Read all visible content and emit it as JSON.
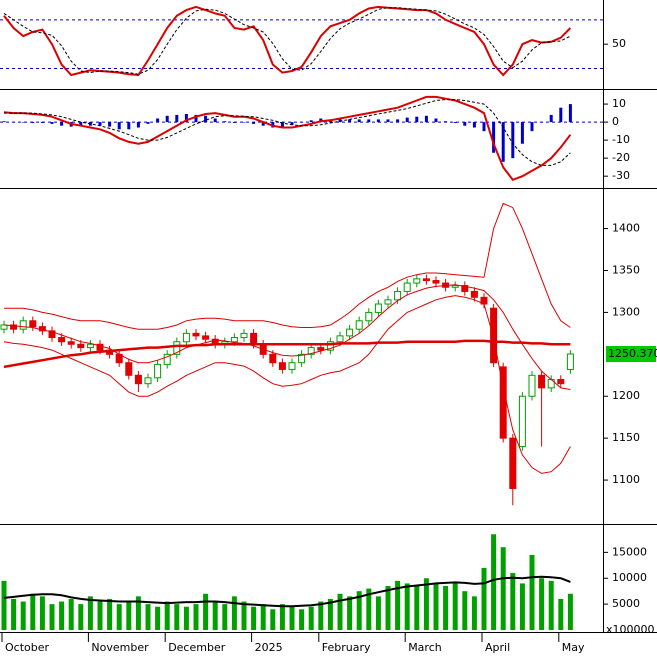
{
  "chart_data": [
    {
      "type": "line",
      "ylim": [
        -4,
        102
      ],
      "yticks": [
        50
      ],
      "reference_lines": [
        20,
        80
      ],
      "reference_color": "#0000cc",
      "series": [
        {
          "color": "#dd0000",
          "width": 2,
          "style": "solid",
          "values": [
            85,
            70,
            60,
            65,
            68,
            50,
            25,
            12,
            15,
            18,
            17,
            16,
            15,
            13,
            12,
            30,
            50,
            70,
            85,
            92,
            96,
            92,
            88,
            85,
            70,
            68,
            72,
            55,
            25,
            15,
            17,
            22,
            40,
            60,
            72,
            76,
            80,
            88,
            94,
            96,
            95,
            94,
            93,
            92,
            92,
            88,
            80,
            75,
            70,
            65,
            50,
            25,
            12,
            25,
            50,
            55,
            52,
            53,
            58,
            70
          ]
        },
        {
          "color": "#000000",
          "width": 1,
          "style": "dashed",
          "values": [
            88,
            80,
            72,
            65,
            64,
            61,
            48,
            29,
            17,
            15,
            17,
            17,
            16,
            15,
            13,
            18,
            31,
            50,
            68,
            82,
            91,
            93,
            92,
            88,
            81,
            74,
            70,
            65,
            51,
            32,
            19,
            18,
            26,
            41,
            57,
            69,
            76,
            81,
            87,
            93,
            95,
            95,
            94,
            93,
            92,
            91,
            87,
            81,
            75,
            70,
            62,
            47,
            29,
            21,
            29,
            43,
            52,
            53,
            54,
            60
          ]
        }
      ]
    },
    {
      "type": "line",
      "ylim": [
        -36,
        16.7
      ],
      "yticks": [
        10,
        0,
        -10,
        -20,
        -30
      ],
      "reference_lines": [
        0
      ],
      "reference_color": "#0000cc",
      "series": [
        {
          "kind": "bar",
          "color": "#0000cc",
          "values": [
            0.5,
            0,
            0,
            -0.5,
            -0.5,
            -1,
            -2,
            -2.5,
            -2,
            -2,
            -2,
            -2.5,
            -4,
            -4,
            -3,
            -1,
            2,
            3.5,
            4,
            4.5,
            4,
            3.5,
            2,
            0.5,
            -0.5,
            -0.2,
            -1,
            -2,
            -3,
            -2.5,
            -1.5,
            0,
            1,
            2,
            1.5,
            1.5,
            1.5,
            1.5,
            1.5,
            1.5,
            1.5,
            1.5,
            2.5,
            3,
            3.5,
            2,
            0.5,
            -0.5,
            -2,
            -3,
            -5,
            -17,
            -22,
            -20,
            -12,
            -5,
            0,
            4,
            8,
            10
          ]
        },
        {
          "color": "#dd0000",
          "width": 2,
          "style": "solid",
          "values": [
            5.5,
            5,
            5,
            4.5,
            4,
            3,
            1,
            -1,
            -2,
            -3,
            -4,
            -6,
            -9,
            -11,
            -12,
            -11,
            -8,
            -5,
            -2,
            1,
            3,
            4.5,
            5,
            4,
            3,
            3,
            2,
            0,
            -2,
            -3,
            -3,
            -2,
            -1,
            0.5,
            1,
            2,
            3,
            4,
            5,
            6,
            7,
            8,
            10,
            12,
            14,
            14,
            13,
            12,
            10,
            8,
            5,
            -12,
            -25,
            -32,
            -30,
            -27,
            -24,
            -20,
            -14,
            -7
          ]
        },
        {
          "color": "#000000",
          "width": 1,
          "style": "dashed",
          "values": [
            5,
            5,
            5,
            5,
            4.5,
            4,
            3,
            1.5,
            0,
            -1,
            -2,
            -3.5,
            -5,
            -7,
            -9,
            -10,
            -10,
            -8.5,
            -6,
            -3.5,
            -1,
            1,
            3,
            3.5,
            3.5,
            3.2,
            3,
            2,
            1,
            -0.5,
            -1.5,
            -2,
            -2,
            -1.5,
            -0.5,
            0.5,
            1.5,
            2.5,
            3.5,
            4.5,
            5.5,
            6.5,
            7.5,
            9,
            10.5,
            12,
            12.5,
            12.5,
            12,
            11,
            10,
            5,
            -3,
            -12,
            -18,
            -22,
            -24,
            -24,
            -22,
            -17
          ]
        }
      ]
    },
    {
      "type": "candlestick",
      "ylim": [
        1050,
        1446
      ],
      "yticks": [
        1100,
        1150,
        1200,
        1300,
        1350,
        1400
      ],
      "up_color": "#00a000",
      "down_color": "#e00000",
      "last_label": "1250.370",
      "last_label_color": "#00c800",
      "open": [
        1280,
        1285,
        1280,
        1290,
        1283,
        1278,
        1270,
        1265,
        1262,
        1258,
        1262,
        1255,
        1250,
        1240,
        1225,
        1215,
        1222,
        1238,
        1250,
        1265,
        1275,
        1272,
        1268,
        1262,
        1265,
        1270,
        1275,
        1262,
        1250,
        1240,
        1232,
        1240,
        1250,
        1258,
        1255,
        1265,
        1272,
        1280,
        1290,
        1300,
        1310,
        1315,
        1325,
        1335,
        1340,
        1338,
        1335,
        1330,
        1332,
        1325,
        1318,
        1305,
        1235,
        1150,
        1140,
        1200,
        1225,
        1210,
        1220,
        1232
      ],
      "high": [
        1290,
        1290,
        1295,
        1295,
        1288,
        1283,
        1275,
        1270,
        1267,
        1267,
        1267,
        1260,
        1255,
        1245,
        1230,
        1227,
        1243,
        1255,
        1270,
        1280,
        1280,
        1277,
        1273,
        1270,
        1275,
        1280,
        1280,
        1267,
        1255,
        1245,
        1245,
        1255,
        1263,
        1263,
        1270,
        1277,
        1285,
        1295,
        1305,
        1315,
        1320,
        1330,
        1340,
        1345,
        1345,
        1343,
        1340,
        1337,
        1337,
        1330,
        1323,
        1310,
        1240,
        1155,
        1205,
        1230,
        1230,
        1225,
        1225,
        1255
      ],
      "low": [
        1275,
        1275,
        1275,
        1278,
        1273,
        1265,
        1260,
        1257,
        1253,
        1253,
        1250,
        1245,
        1235,
        1220,
        1205,
        1210,
        1217,
        1233,
        1245,
        1260,
        1267,
        1263,
        1257,
        1257,
        1260,
        1265,
        1257,
        1245,
        1235,
        1227,
        1227,
        1235,
        1245,
        1250,
        1250,
        1260,
        1267,
        1275,
        1285,
        1295,
        1305,
        1310,
        1320,
        1330,
        1333,
        1330,
        1325,
        1325,
        1320,
        1313,
        1305,
        1235,
        1145,
        1070,
        1135,
        1195,
        1140,
        1205,
        1210,
        1227
      ],
      "close": [
        1285,
        1280,
        1290,
        1283,
        1278,
        1270,
        1265,
        1262,
        1258,
        1262,
        1255,
        1250,
        1240,
        1225,
        1215,
        1222,
        1238,
        1250,
        1265,
        1275,
        1272,
        1268,
        1262,
        1265,
        1270,
        1275,
        1262,
        1250,
        1240,
        1232,
        1240,
        1250,
        1258,
        1255,
        1265,
        1272,
        1280,
        1290,
        1300,
        1310,
        1315,
        1325,
        1335,
        1340,
        1338,
        1335,
        1330,
        1332,
        1325,
        1318,
        1310,
        1240,
        1150,
        1090,
        1200,
        1225,
        1210,
        1220,
        1215,
        1250.37
      ],
      "series": [
        {
          "color": "#dd0000",
          "width": 1,
          "style": "solid",
          "values": [
            1305,
            1305,
            1305,
            1303,
            1300,
            1298,
            1295,
            1292,
            1290,
            1290,
            1290,
            1288,
            1285,
            1282,
            1280,
            1280,
            1280,
            1282,
            1285,
            1290,
            1292,
            1293,
            1293,
            1292,
            1290,
            1290,
            1290,
            1290,
            1288,
            1285,
            1283,
            1282,
            1282,
            1283,
            1285,
            1292,
            1300,
            1310,
            1318,
            1325,
            1330,
            1337,
            1342,
            1345,
            1347,
            1347,
            1346,
            1345,
            1344,
            1343,
            1342,
            1400,
            1430,
            1425,
            1400,
            1370,
            1340,
            1310,
            1290,
            1282
          ]
        },
        {
          "color": "#dd0000",
          "width": 1,
          "style": "solid",
          "values": [
            1285,
            1284,
            1283,
            1282,
            1279,
            1277,
            1273,
            1269,
            1265,
            1263,
            1260,
            1257,
            1250,
            1244,
            1240,
            1240,
            1243,
            1247,
            1252,
            1258,
            1261,
            1264,
            1267,
            1266,
            1264,
            1263,
            1260,
            1256,
            1252,
            1249,
            1248,
            1249,
            1251,
            1254,
            1257,
            1261,
            1268,
            1275,
            1284,
            1295,
            1305,
            1314,
            1321,
            1325,
            1329,
            1331,
            1332,
            1333,
            1331,
            1329,
            1326,
            1315,
            1300,
            1280,
            1262,
            1245,
            1230,
            1220,
            1210,
            1208
          ]
        },
        {
          "color": "#dd0000",
          "width": 1,
          "style": "solid",
          "values": [
            1265,
            1263,
            1262,
            1260,
            1258,
            1255,
            1250,
            1245,
            1240,
            1235,
            1230,
            1225,
            1215,
            1205,
            1200,
            1200,
            1205,
            1212,
            1218,
            1225,
            1230,
            1235,
            1240,
            1240,
            1238,
            1236,
            1230,
            1222,
            1215,
            1212,
            1213,
            1215,
            1220,
            1225,
            1228,
            1230,
            1235,
            1240,
            1250,
            1265,
            1280,
            1290,
            1300,
            1305,
            1310,
            1315,
            1318,
            1320,
            1318,
            1315,
            1310,
            1270,
            1210,
            1160,
            1130,
            1115,
            1108,
            1110,
            1120,
            1140
          ]
        },
        {
          "color": "#dd0000",
          "width": 2.5,
          "style": "solid",
          "values": [
            1235,
            1237,
            1239,
            1241,
            1243,
            1245,
            1247,
            1249,
            1250,
            1252,
            1253,
            1254,
            1255,
            1256,
            1257,
            1258,
            1258,
            1259,
            1260,
            1260,
            1261,
            1261,
            1262,
            1262,
            1262,
            1262,
            1262,
            1262,
            1262,
            1262,
            1262,
            1262,
            1262,
            1262,
            1262,
            1263,
            1263,
            1263,
            1263,
            1264,
            1264,
            1264,
            1265,
            1265,
            1265,
            1265,
            1265,
            1265,
            1266,
            1266,
            1266,
            1265,
            1265,
            1264,
            1264,
            1263,
            1263,
            1262,
            1262,
            1262
          ]
        }
      ]
    },
    {
      "type": "bar",
      "ylim": [
        0,
        19900
      ],
      "yticks": [
        5000,
        10000,
        15000
      ],
      "color": "#00a000",
      "unit_label": "x100000",
      "categories": [
        "October",
        null,
        null,
        null,
        null,
        null,
        null,
        null,
        null,
        "November",
        null,
        null,
        null,
        null,
        null,
        null,
        null,
        "December",
        null,
        null,
        null,
        null,
        null,
        null,
        null,
        null,
        "2025",
        null,
        null,
        null,
        null,
        null,
        null,
        "February",
        null,
        null,
        null,
        null,
        null,
        null,
        null,
        null,
        "March",
        null,
        null,
        null,
        null,
        null,
        null,
        null,
        "April",
        null,
        null,
        null,
        null,
        null,
        null,
        null,
        "May",
        null
      ],
      "values": [
        9500,
        6000,
        5500,
        7000,
        6500,
        5000,
        5500,
        6000,
        5000,
        6500,
        5500,
        6000,
        5000,
        5500,
        6500,
        5000,
        4500,
        5500,
        5000,
        4500,
        5000,
        7000,
        5500,
        5000,
        6500,
        5500,
        4500,
        5000,
        4000,
        5000,
        4500,
        4000,
        4500,
        5500,
        6000,
        7000,
        6500,
        7500,
        8000,
        6500,
        8500,
        9500,
        9000,
        8500,
        10000,
        9000,
        8500,
        9000,
        7500,
        6500,
        12000,
        18500,
        16000,
        11000,
        9000,
        14500,
        10000,
        9500,
        6000,
        7000
      ],
      "series": [
        {
          "color": "#000000",
          "width": 2,
          "style": "solid",
          "values": [
            6200,
            6400,
            6600,
            6800,
            6900,
            6900,
            6700,
            6300,
            6000,
            5800,
            5700,
            5600,
            5500,
            5500,
            5500,
            5400,
            5300,
            5200,
            5300,
            5400,
            5400,
            5500,
            5500,
            5400,
            5200,
            5000,
            4900,
            4800,
            4700,
            4600,
            4600,
            4700,
            4800,
            5000,
            5300,
            5700,
            6000,
            6400,
            6900,
            7300,
            7700,
            8100,
            8400,
            8600,
            8800,
            9000,
            9100,
            9200,
            9100,
            8900,
            9000,
            9700,
            10000,
            10100,
            10000,
            10200,
            10300,
            10200,
            10000,
            9300
          ]
        }
      ]
    }
  ]
}
